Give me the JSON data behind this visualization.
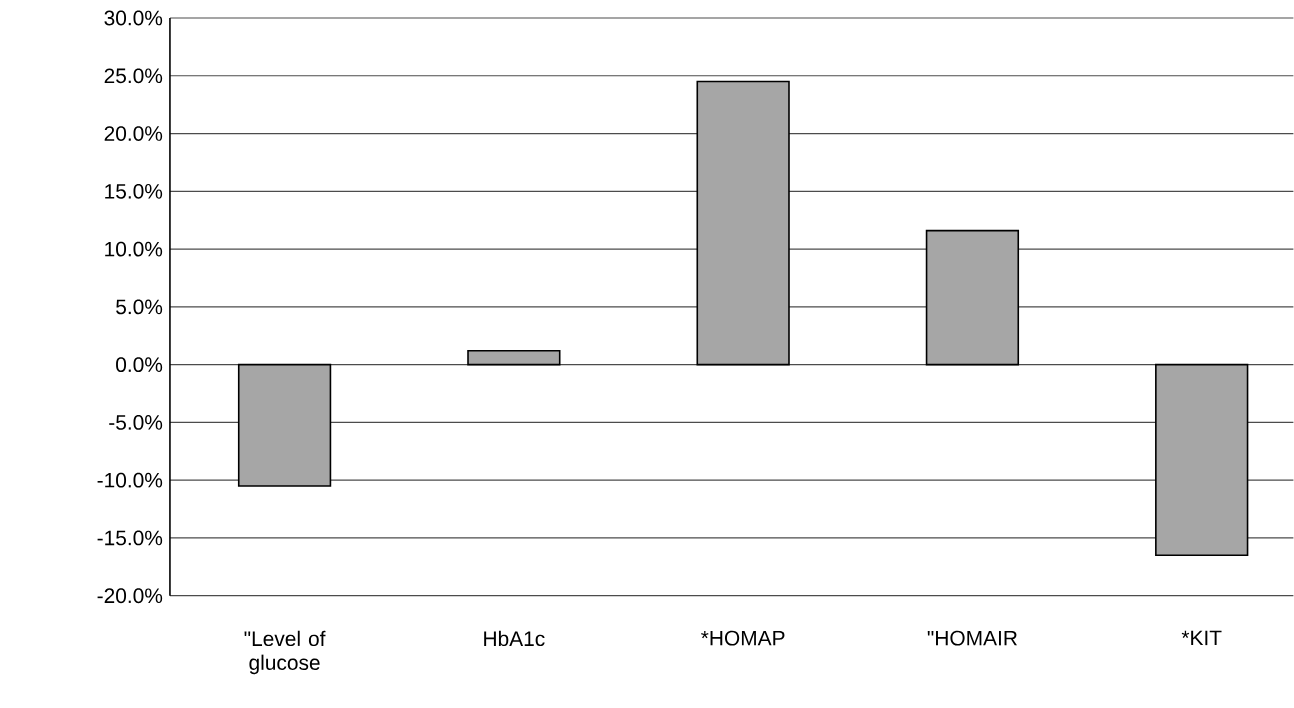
{
  "chart_data": {
    "type": "bar",
    "categories": [
      "\"Level of glucose",
      "HbA1c",
      "*HOMAP",
      "\"HOMAIR",
      "*KIT"
    ],
    "values": [
      -10.5,
      1.2,
      24.5,
      11.6,
      -16.5
    ],
    "color": "#a6a6a6",
    "ylim": [
      -20,
      30
    ],
    "yticks": [
      {
        "value": -20,
        "label": "-20.0%"
      },
      {
        "value": -15,
        "label": "-15.0%"
      },
      {
        "value": -10,
        "label": "-10.0%"
      },
      {
        "value": -5,
        "label": "-5.0%"
      },
      {
        "value": 0,
        "label": "0.0%"
      },
      {
        "value": 5,
        "label": "5.0%"
      },
      {
        "value": 10,
        "label": "10.0%"
      },
      {
        "value": 15,
        "label": "15.0%"
      },
      {
        "value": 20,
        "label": "20.0%"
      },
      {
        "value": 25,
        "label": "25.0%"
      },
      {
        "value": 30,
        "label": "30.0%"
      }
    ],
    "grid": "y"
  }
}
